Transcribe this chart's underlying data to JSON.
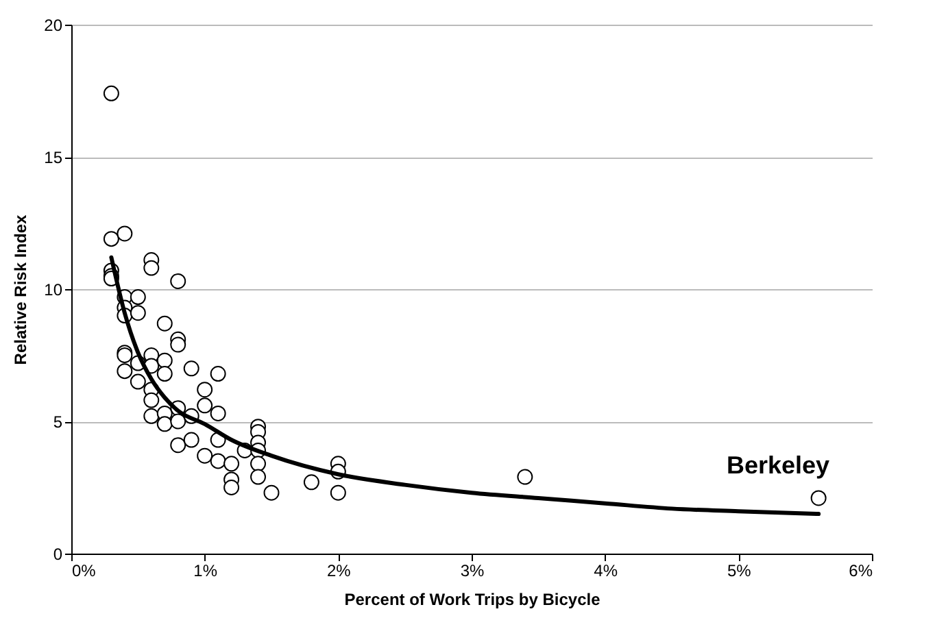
{
  "chart_data": {
    "type": "scatter",
    "xlabel": "Percent of Work Trips by Bicycle",
    "ylabel": "Relative Risk Index",
    "xlim": [
      0,
      6
    ],
    "ylim": [
      0,
      20
    ],
    "xticks": [
      {
        "value": 0,
        "label": "0%"
      },
      {
        "value": 1,
        "label": "1%"
      },
      {
        "value": 2,
        "label": "2%"
      },
      {
        "value": 3,
        "label": "3%"
      },
      {
        "value": 4,
        "label": "4%"
      },
      {
        "value": 5,
        "label": "5%"
      },
      {
        "value": 6,
        "label": "6%"
      }
    ],
    "yticks": [
      0,
      5,
      10,
      15,
      20
    ],
    "grid": "y",
    "series": [
      {
        "marker": "circle",
        "color": "#000000",
        "x": [
          0.3,
          0.3,
          0.3,
          0.3,
          0.3,
          0.4,
          0.4,
          0.4,
          0.4,
          0.4,
          0.4,
          0.4,
          0.5,
          0.5,
          0.5,
          0.5,
          0.6,
          0.6,
          0.6,
          0.6,
          0.6,
          0.6,
          0.6,
          0.7,
          0.7,
          0.7,
          0.7,
          0.7,
          0.8,
          0.8,
          0.8,
          0.8,
          0.8,
          0.8,
          0.9,
          0.9,
          0.9,
          1.0,
          1.0,
          1.0,
          1.1,
          1.1,
          1.1,
          1.1,
          1.2,
          1.2,
          1.2,
          1.3,
          1.4,
          1.4,
          1.4,
          1.4,
          1.4,
          1.4,
          1.5,
          1.8,
          2.0,
          2.0,
          2.0,
          3.4,
          5.6
        ],
        "values": [
          17.4,
          11.9,
          10.7,
          10.5,
          10.4,
          12.1,
          9.7,
          9.3,
          9.0,
          7.6,
          7.5,
          6.9,
          9.7,
          9.1,
          7.2,
          6.5,
          11.1,
          10.8,
          7.5,
          7.1,
          6.2,
          5.8,
          5.2,
          8.7,
          7.3,
          6.8,
          5.3,
          4.9,
          10.3,
          8.1,
          7.9,
          5.5,
          5.0,
          4.1,
          7.0,
          5.2,
          4.3,
          6.2,
          5.6,
          3.7,
          6.8,
          5.3,
          4.3,
          3.5,
          3.4,
          2.8,
          2.5,
          3.9,
          4.8,
          4.6,
          4.2,
          3.9,
          3.4,
          2.9,
          2.3,
          2.7,
          3.4,
          3.1,
          2.3,
          2.9,
          2.1
        ]
      },
      {
        "type": "line",
        "line_style": "solid",
        "color": "#000000",
        "x": [
          0.3,
          0.4,
          0.5,
          0.6,
          0.7,
          0.8,
          1.0,
          1.2,
          1.5,
          2.0,
          2.5,
          3.0,
          3.5,
          4.0,
          4.5,
          5.0,
          5.6
        ],
        "values": [
          11.2,
          9.1,
          7.6,
          6.6,
          5.9,
          5.4,
          4.9,
          4.3,
          3.7,
          3.0,
          2.6,
          2.3,
          2.1,
          1.9,
          1.7,
          1.6,
          1.5
        ]
      }
    ],
    "annotations": [
      {
        "text": "Berkeley",
        "x": 5.6,
        "y": 2.1
      }
    ]
  }
}
